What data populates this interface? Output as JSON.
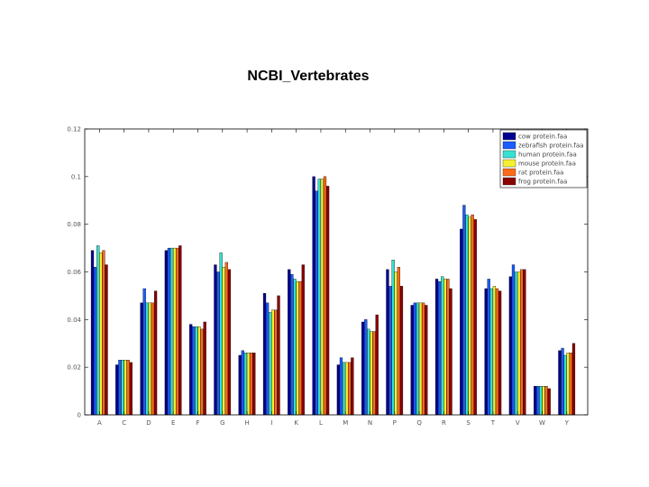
{
  "chart_data": {
    "type": "bar",
    "title": "NCBI_Vertebrates",
    "xlabel": "",
    "ylabel": "",
    "ylim": [
      0,
      0.12
    ],
    "yticks": [
      0,
      0.02,
      0.04,
      0.06,
      0.08,
      0.1,
      0.12
    ],
    "ytick_labels": [
      "0",
      "0.02",
      "0.04",
      "0.06",
      "0.08",
      "0.1",
      "0.12"
    ],
    "categories": [
      "A",
      "C",
      "D",
      "E",
      "F",
      "G",
      "H",
      "I",
      "K",
      "L",
      "M",
      "N",
      "P",
      "Q",
      "R",
      "S",
      "T",
      "V",
      "W",
      "Y"
    ],
    "legend_position": "top-right",
    "series": [
      {
        "name": "cow protein.faa",
        "color": "#00008f",
        "values": [
          0.069,
          0.021,
          0.047,
          0.069,
          0.038,
          0.063,
          0.025,
          0.051,
          0.061,
          0.1,
          0.021,
          0.039,
          0.061,
          0.046,
          0.057,
          0.078,
          0.053,
          0.058,
          0.012,
          0.027
        ]
      },
      {
        "name": "zebrafish protein.faa",
        "color": "#1a5cff",
        "values": [
          0.062,
          0.023,
          0.053,
          0.07,
          0.037,
          0.06,
          0.027,
          0.047,
          0.059,
          0.094,
          0.024,
          0.04,
          0.054,
          0.047,
          0.056,
          0.088,
          0.057,
          0.063,
          0.012,
          0.028
        ]
      },
      {
        "name": "human protein.faa",
        "color": "#37e0d0",
        "values": [
          0.071,
          0.023,
          0.047,
          0.07,
          0.037,
          0.068,
          0.026,
          0.043,
          0.057,
          0.099,
          0.022,
          0.036,
          0.065,
          0.047,
          0.058,
          0.084,
          0.053,
          0.06,
          0.012,
          0.025
        ]
      },
      {
        "name": "mouse protein.faa",
        "color": "#f5f032",
        "values": [
          0.068,
          0.023,
          0.047,
          0.07,
          0.037,
          0.062,
          0.026,
          0.044,
          0.056,
          0.099,
          0.022,
          0.035,
          0.06,
          0.047,
          0.057,
          0.083,
          0.054,
          0.06,
          0.012,
          0.026
        ]
      },
      {
        "name": "rat protein.faa",
        "color": "#ff6a1a",
        "values": [
          0.069,
          0.023,
          0.047,
          0.07,
          0.036,
          0.064,
          0.026,
          0.044,
          0.056,
          0.1,
          0.022,
          0.035,
          0.062,
          0.047,
          0.057,
          0.084,
          0.053,
          0.061,
          0.012,
          0.026
        ]
      },
      {
        "name": "frog protein.faa",
        "color": "#8b0000",
        "values": [
          0.063,
          0.022,
          0.052,
          0.071,
          0.039,
          0.061,
          0.026,
          0.05,
          0.063,
          0.096,
          0.024,
          0.042,
          0.054,
          0.046,
          0.053,
          0.082,
          0.052,
          0.061,
          0.011,
          0.03
        ]
      }
    ]
  }
}
